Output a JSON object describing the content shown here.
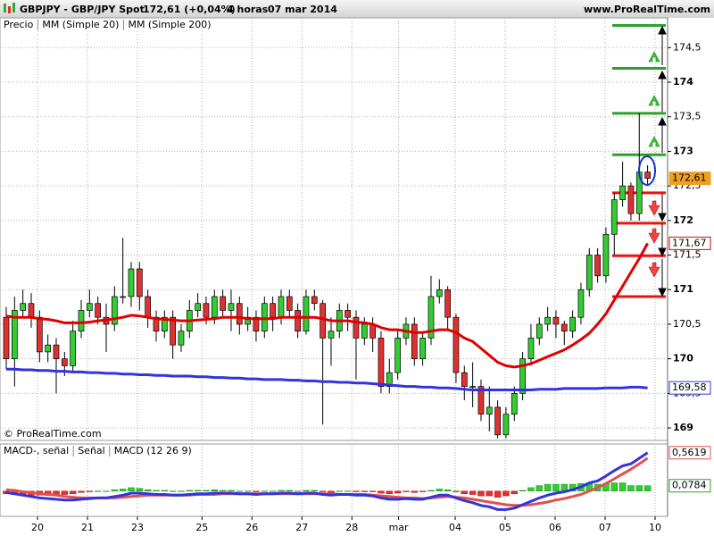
{
  "header": {
    "symbol": "GBPJPY - GBP/JPY Spot",
    "quote": "172,61 (+0,04%)",
    "period": "4 horas",
    "date": "07 mar 2014",
    "site": "www.ProRealTime.com"
  },
  "copyright": "© ProRealTime.com",
  "chart_data": [
    {
      "type": "candlestick",
      "xlim": [
        -0.75,
        79.4
      ],
      "ylim": [
        168.82,
        174.93
      ],
      "yticks": [
        {
          "value": 169,
          "label": "169"
        },
        {
          "value": 169.5,
          "label": "169,5"
        },
        {
          "value": 170,
          "label": "170"
        },
        {
          "value": 170.5,
          "label": "170,5"
        },
        {
          "value": 171,
          "label": "171"
        },
        {
          "value": 171.5,
          "label": "171,5"
        },
        {
          "value": 172,
          "label": "172"
        },
        {
          "value": 172.5,
          "label": "172,5"
        },
        {
          "value": 173,
          "label": "173"
        },
        {
          "value": 173.5,
          "label": "173,5"
        },
        {
          "value": 174,
          "label": "174"
        },
        {
          "value": 174.5,
          "label": "174,5"
        }
      ],
      "grid": true,
      "series": [
        {
          "name": "Precio",
          "up_color": "#33cc33",
          "down_color": "#e03030",
          "open": [
            170.6,
            170.0,
            170.7,
            170.8,
            170.6,
            170.1,
            170.2,
            170.0,
            169.9,
            170.4,
            170.7,
            170.8,
            170.6,
            170.5,
            170.9,
            170.9,
            171.3,
            170.9,
            170.6,
            170.4,
            170.6,
            170.2,
            170.4,
            170.7,
            170.8,
            170.6,
            170.9,
            170.7,
            170.8,
            170.5,
            170.6,
            170.4,
            170.8,
            170.6,
            170.9,
            170.7,
            170.4,
            170.9,
            170.8,
            170.3,
            170.4,
            170.7,
            170.6,
            170.3,
            170.5,
            170.3,
            169.6,
            169.8,
            170.3,
            170.5,
            170.0,
            170.3,
            170.9,
            171.0,
            170.6,
            169.8,
            169.6,
            169.6,
            169.2,
            169.3,
            168.9,
            169.2,
            169.5,
            170.0,
            170.3,
            170.5,
            170.6,
            170.5,
            170.4,
            170.6,
            171.0,
            171.5,
            171.2,
            171.8,
            172.3,
            172.5,
            172.1,
            172.7
          ],
          "high": [
            170.75,
            170.9,
            171.0,
            170.95,
            170.7,
            170.35,
            170.3,
            170.1,
            170.55,
            170.85,
            171.0,
            170.9,
            170.8,
            171.05,
            171.75,
            171.4,
            171.4,
            171.0,
            170.7,
            170.7,
            170.7,
            170.5,
            170.85,
            170.95,
            170.9,
            171.0,
            171.0,
            171.0,
            170.9,
            170.75,
            170.7,
            170.9,
            170.9,
            171.0,
            171.0,
            170.8,
            171.0,
            171.0,
            170.85,
            170.6,
            170.8,
            170.8,
            170.7,
            170.6,
            170.6,
            170.4,
            170.0,
            170.4,
            170.6,
            170.6,
            170.4,
            171.2,
            171.15,
            171.05,
            170.65,
            169.9,
            169.95,
            169.7,
            169.6,
            169.4,
            169.3,
            169.6,
            170.1,
            170.5,
            170.6,
            170.75,
            170.7,
            170.55,
            170.7,
            171.1,
            171.6,
            171.6,
            171.9,
            172.4,
            172.85,
            172.55,
            173.55,
            172.8
          ],
          "low": [
            169.85,
            169.6,
            170.6,
            170.45,
            169.95,
            169.95,
            169.5,
            169.75,
            169.8,
            170.3,
            170.6,
            170.5,
            170.1,
            170.4,
            170.8,
            170.75,
            170.7,
            170.45,
            170.25,
            170.3,
            170.0,
            170.1,
            170.3,
            170.6,
            170.5,
            170.5,
            170.6,
            170.4,
            170.35,
            170.4,
            170.25,
            170.3,
            170.4,
            170.5,
            170.6,
            170.3,
            170.35,
            170.7,
            169.05,
            169.9,
            170.3,
            170.4,
            169.7,
            170.2,
            170.1,
            169.5,
            169.5,
            169.7,
            170.2,
            169.9,
            169.9,
            170.2,
            170.8,
            170.4,
            169.65,
            169.4,
            169.3,
            169.1,
            168.95,
            168.85,
            168.85,
            169.1,
            169.4,
            169.9,
            170.2,
            170.4,
            170.3,
            170.2,
            170.3,
            170.5,
            170.9,
            171.1,
            171.1,
            171.5,
            172.2,
            172.0,
            172.0,
            172.5
          ],
          "close": [
            170.0,
            170.7,
            170.8,
            170.6,
            170.1,
            170.2,
            170.0,
            169.9,
            170.4,
            170.7,
            170.8,
            170.6,
            170.5,
            170.9,
            170.9,
            171.3,
            170.9,
            170.6,
            170.4,
            170.6,
            170.2,
            170.4,
            170.7,
            170.8,
            170.6,
            170.9,
            170.7,
            170.8,
            170.5,
            170.6,
            170.4,
            170.8,
            170.6,
            170.9,
            170.7,
            170.4,
            170.9,
            170.8,
            170.3,
            170.4,
            170.7,
            170.6,
            170.3,
            170.5,
            170.3,
            169.6,
            169.8,
            170.3,
            170.5,
            170.0,
            170.3,
            170.9,
            171.0,
            170.6,
            169.8,
            169.6,
            169.6,
            169.2,
            169.3,
            168.9,
            169.2,
            169.5,
            170.0,
            170.3,
            170.5,
            170.6,
            170.5,
            170.4,
            170.6,
            171.0,
            171.5,
            171.2,
            171.8,
            172.3,
            172.5,
            172.1,
            172.7,
            172.61
          ]
        },
        {
          "name": "MM (Simple 20)",
          "color": "#e00000",
          "values": [
            170.62,
            170.6,
            170.6,
            170.6,
            170.58,
            170.57,
            170.55,
            170.52,
            170.52,
            170.52,
            170.53,
            170.55,
            170.56,
            170.58,
            170.6,
            170.63,
            170.62,
            170.6,
            170.58,
            170.57,
            170.56,
            170.55,
            170.55,
            170.56,
            170.57,
            170.58,
            170.6,
            170.6,
            170.6,
            170.58,
            170.58,
            170.58,
            170.58,
            170.6,
            170.6,
            170.6,
            170.6,
            170.6,
            170.58,
            170.55,
            170.55,
            170.55,
            170.53,
            170.52,
            170.5,
            170.45,
            170.42,
            170.42,
            170.4,
            170.38,
            170.38,
            170.4,
            170.42,
            170.42,
            170.38,
            170.3,
            170.25,
            170.15,
            170.05,
            169.95,
            169.9,
            169.88,
            169.9,
            169.93,
            169.98,
            170.03,
            170.08,
            170.13,
            170.2,
            170.28,
            170.37,
            170.5,
            170.65,
            170.85,
            171.05,
            171.25,
            171.45,
            171.67
          ]
        },
        {
          "name": "MM (Simple 200)",
          "color": "#3333dd",
          "values": [
            169.85,
            169.85,
            169.84,
            169.84,
            169.83,
            169.83,
            169.82,
            169.82,
            169.81,
            169.81,
            169.8,
            169.8,
            169.79,
            169.79,
            169.78,
            169.78,
            169.77,
            169.77,
            169.76,
            169.76,
            169.75,
            169.75,
            169.75,
            169.74,
            169.74,
            169.73,
            169.73,
            169.72,
            169.72,
            169.71,
            169.71,
            169.7,
            169.7,
            169.7,
            169.69,
            169.69,
            169.68,
            169.68,
            169.67,
            169.67,
            169.66,
            169.66,
            169.65,
            169.65,
            169.64,
            169.63,
            169.62,
            169.61,
            169.6,
            169.6,
            169.59,
            169.59,
            169.58,
            169.58,
            169.57,
            169.56,
            169.55,
            169.55,
            169.55,
            169.55,
            169.55,
            169.55,
            169.55,
            169.55,
            169.56,
            169.56,
            169.56,
            169.57,
            169.57,
            169.57,
            169.57,
            169.57,
            169.58,
            169.58,
            169.58,
            169.59,
            169.59,
            169.58
          ]
        }
      ],
      "tags": [
        {
          "value": 172.61,
          "label": "172,61",
          "color": "#f0a020",
          "filled": true
        },
        {
          "value": 171.67,
          "label": "171,67",
          "color": "#e00000",
          "filled": false
        },
        {
          "value": 169.58,
          "label": "169,58",
          "color": "#3333dd",
          "filled": false
        }
      ],
      "hlines": [
        {
          "value": 174.82,
          "color": "#2ca02c"
        },
        {
          "value": 174.2,
          "color": "#2ca02c"
        },
        {
          "value": 173.55,
          "color": "#2ca02c"
        },
        {
          "value": 172.95,
          "color": "#2ca02c"
        },
        {
          "value": 172.4,
          "color": "#ee1111"
        },
        {
          "value": 171.96,
          "color": "#ee1111"
        },
        {
          "value": 171.49,
          "color": "#ee1111"
        },
        {
          "value": 170.9,
          "color": "#ee1111"
        }
      ]
    },
    {
      "type": "macd",
      "xlim": [
        -0.75,
        79.4
      ],
      "ylim": [
        -0.37,
        0.69
      ],
      "xticks": [
        {
          "value": 3.75,
          "label": "20"
        },
        {
          "value": 9.75,
          "label": "21"
        },
        {
          "value": 15.75,
          "label": "23"
        },
        {
          "value": 23.5,
          "label": "25"
        },
        {
          "value": 29.5,
          "label": "26"
        },
        {
          "value": 35.5,
          "label": "27"
        },
        {
          "value": 41.5,
          "label": "28"
        },
        {
          "value": 47.1,
          "label": "mar"
        },
        {
          "value": 53.9,
          "label": "04"
        },
        {
          "value": 59.9,
          "label": "05"
        },
        {
          "value": 65.9,
          "label": "06"
        },
        {
          "value": 71.9,
          "label": "07"
        },
        {
          "value": 77.9,
          "label": "10"
        }
      ],
      "series": [
        {
          "name": "MACD-, señal",
          "color": "#33cc33",
          "neg_color": "#e03030",
          "values": [
            -0.04,
            -0.05,
            -0.05,
            -0.06,
            -0.06,
            -0.06,
            -0.06,
            -0.05,
            -0.04,
            -0.02,
            -0.01,
            0,
            0,
            0.02,
            0.03,
            0.05,
            0.04,
            0.02,
            0.01,
            0.01,
            0,
            0,
            0.01,
            0.01,
            0.01,
            0.02,
            0.01,
            0.01,
            0,
            0,
            -0.01,
            0,
            0,
            0.01,
            0.01,
            0,
            0.01,
            0.01,
            -0.01,
            -0.02,
            0,
            0,
            -0.01,
            -0.01,
            -0.01,
            -0.03,
            -0.04,
            -0.03,
            -0.01,
            -0.02,
            -0.01,
            0.01,
            0.03,
            0.02,
            -0.01,
            -0.04,
            -0.05,
            -0.07,
            -0.07,
            -0.09,
            -0.07,
            -0.04,
            0.01,
            0.05,
            0.08,
            0.1,
            0.1,
            0.1,
            0.1,
            0.11,
            0.12,
            0.1,
            0.11,
            0.12,
            0.12,
            0.08,
            0.08,
            0.0784
          ]
        },
        {
          "name": "Señal",
          "color": "#e05050",
          "values": [
            0.02,
            0.01,
            -0.01,
            -0.02,
            -0.04,
            -0.05,
            -0.06,
            -0.08,
            -0.09,
            -0.1,
            -0.1,
            -0.1,
            -0.1,
            -0.1,
            -0.09,
            -0.08,
            -0.07,
            -0.06,
            -0.06,
            -0.06,
            -0.06,
            -0.06,
            -0.06,
            -0.05,
            -0.05,
            -0.05,
            -0.04,
            -0.04,
            -0.04,
            -0.04,
            -0.04,
            -0.04,
            -0.04,
            -0.04,
            -0.04,
            -0.04,
            -0.04,
            -0.04,
            -0.04,
            -0.04,
            -0.05,
            -0.05,
            -0.05,
            -0.05,
            -0.06,
            -0.07,
            -0.08,
            -0.09,
            -0.1,
            -0.1,
            -0.11,
            -0.1,
            -0.09,
            -0.08,
            -0.09,
            -0.1,
            -0.12,
            -0.14,
            -0.16,
            -0.18,
            -0.2,
            -0.21,
            -0.21,
            -0.2,
            -0.18,
            -0.16,
            -0.13,
            -0.11,
            -0.08,
            -0.05,
            0,
            0.05,
            0.11,
            0.18,
            0.25,
            0.32,
            0.4,
            0.4835
          ]
        },
        {
          "name": "MACD (12 26 9)",
          "color": "#3333dd",
          "values": [
            -0.02,
            -0.04,
            -0.06,
            -0.08,
            -0.1,
            -0.11,
            -0.12,
            -0.13,
            -0.13,
            -0.12,
            -0.11,
            -0.1,
            -0.1,
            -0.08,
            -0.06,
            -0.03,
            -0.03,
            -0.04,
            -0.05,
            -0.05,
            -0.06,
            -0.06,
            -0.05,
            -0.04,
            -0.04,
            -0.03,
            -0.03,
            -0.03,
            -0.04,
            -0.04,
            -0.05,
            -0.04,
            -0.04,
            -0.03,
            -0.03,
            -0.04,
            -0.03,
            -0.03,
            -0.05,
            -0.06,
            -0.05,
            -0.05,
            -0.06,
            -0.06,
            -0.07,
            -0.1,
            -0.12,
            -0.12,
            -0.11,
            -0.12,
            -0.12,
            -0.09,
            -0.06,
            -0.06,
            -0.1,
            -0.14,
            -0.17,
            -0.21,
            -0.23,
            -0.27,
            -0.27,
            -0.25,
            -0.2,
            -0.15,
            -0.1,
            -0.06,
            -0.03,
            -0.01,
            0.02,
            0.06,
            0.12,
            0.15,
            0.22,
            0.3,
            0.37,
            0.4,
            0.48,
            0.5619
          ]
        }
      ],
      "tags": [
        {
          "value": 0.5619,
          "label": "0,5619",
          "color": "#e05050",
          "filled": false
        },
        {
          "value": 0.0784,
          "label": "0,0784",
          "color": "#22aa22",
          "filled": false
        }
      ]
    }
  ]
}
